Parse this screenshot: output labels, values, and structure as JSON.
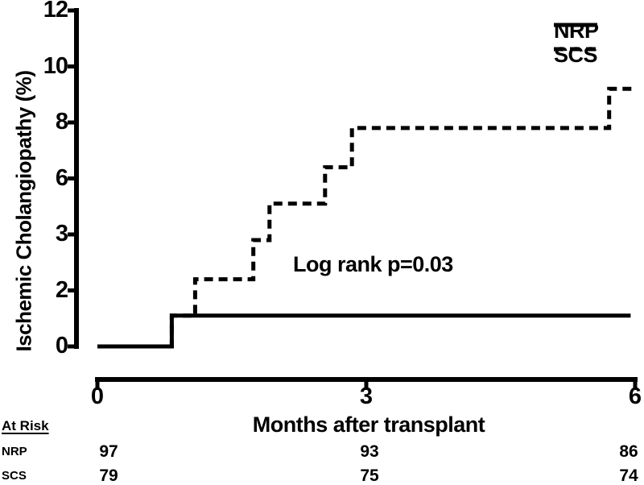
{
  "y_axis": {
    "label": "Ischemic Cholangiopathy (%)",
    "ticks": [
      "12",
      "10",
      "8",
      "6",
      "3",
      "2",
      "0"
    ]
  },
  "x_axis": {
    "label": "Months after transplant",
    "ticks": [
      "0",
      "3",
      "6"
    ]
  },
  "legend": [
    {
      "label": "NRP",
      "style": "solid"
    },
    {
      "label": "SCS",
      "style": "dashed"
    }
  ],
  "annotation": "Log rank p=0.03",
  "at_risk": {
    "header": "At Risk",
    "rows": [
      {
        "label": "NRP",
        "values": [
          "97",
          "93",
          "86"
        ]
      },
      {
        "label": "SCS",
        "values": [
          "79",
          "75",
          "74"
        ]
      }
    ]
  },
  "colors": {
    "ink": "#000000",
    "background": "#ffffff"
  },
  "chart_data": {
    "type": "line",
    "subtype": "step-survival",
    "title": "",
    "xlabel": "Months after transplant",
    "ylabel": "Ischemic Cholangiopathy (%)",
    "xlim": [
      0,
      6
    ],
    "ylim": [
      0,
      12
    ],
    "x_tick_labels": [
      "0",
      "3",
      "6"
    ],
    "y_tick_labels": [
      "12",
      "10",
      "8",
      "6",
      "3",
      "2",
      "0"
    ],
    "grid": false,
    "legend_position": "top-right",
    "annotation": "Log rank p=0.03",
    "series": [
      {
        "name": "NRP",
        "line": "solid",
        "steps": [
          [
            0,
            0
          ],
          [
            0.83,
            1.1
          ],
          [
            5.95,
            1.1
          ]
        ]
      },
      {
        "name": "SCS",
        "line": "dashed",
        "steps": [
          [
            0,
            0
          ],
          [
            0.83,
            1.1
          ],
          [
            1.09,
            2.4
          ],
          [
            1.74,
            3.8
          ],
          [
            1.92,
            5.1
          ],
          [
            2.54,
            6.4
          ],
          [
            2.84,
            7.8
          ],
          [
            5.71,
            9.2
          ],
          [
            5.97,
            9.2
          ]
        ]
      }
    ],
    "at_risk_counts": {
      "months": [
        0,
        3,
        6
      ],
      "NRP": [
        97,
        93,
        86
      ],
      "SCS": [
        79,
        75,
        74
      ]
    }
  }
}
